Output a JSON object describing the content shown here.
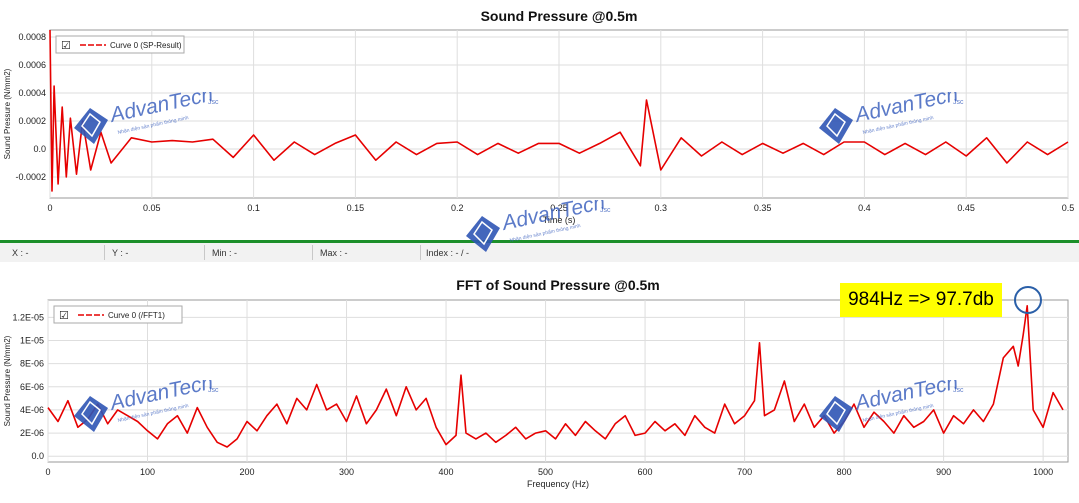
{
  "chart_data": [
    {
      "type": "line",
      "title": "Sound Pressure @0.5m",
      "xlabel": "Time (s)",
      "ylabel": "Sound Pressure (N/mm2)",
      "xlim": [
        0,
        0.5
      ],
      "ylim": [
        -0.00035,
        0.00085
      ],
      "x_ticks": [
        "0",
        "0.05",
        "0.1",
        "0.15",
        "0.2",
        "0.25",
        "0.3",
        "0.35",
        "0.4",
        "0.45",
        "0.5"
      ],
      "x_tick_values": [
        0,
        0.05,
        0.1,
        0.15,
        0.2,
        0.25,
        0.3,
        0.35,
        0.4,
        0.45,
        0.5
      ],
      "y_ticks": [
        "0.0008",
        "0.0006",
        "0.0004",
        "0.0002",
        "0.0",
        "-0.0002"
      ],
      "y_tick_values": [
        0.0008,
        0.0006,
        0.0004,
        0.0002,
        0,
        -0.0002
      ],
      "grid": true,
      "legend": {
        "position": "top-left",
        "checkbox": "☑",
        "entry": "Curve 0 (SP-Result)"
      },
      "series": [
        {
          "name": "Curve 0 (SP-Result)",
          "color": "#e60000",
          "x": [
            0,
            0.001,
            0.002,
            0.004,
            0.006,
            0.008,
            0.01,
            0.013,
            0.016,
            0.02,
            0.025,
            0.03,
            0.04,
            0.05,
            0.06,
            0.07,
            0.08,
            0.09,
            0.1,
            0.11,
            0.12,
            0.13,
            0.14,
            0.15,
            0.16,
            0.17,
            0.18,
            0.19,
            0.2,
            0.21,
            0.22,
            0.23,
            0.24,
            0.25,
            0.26,
            0.27,
            0.28,
            0.29,
            0.293,
            0.3,
            0.31,
            0.32,
            0.33,
            0.34,
            0.35,
            0.36,
            0.37,
            0.38,
            0.39,
            0.4,
            0.41,
            0.42,
            0.43,
            0.44,
            0.45,
            0.46,
            0.47,
            0.48,
            0.49,
            0.5
          ],
          "y": [
            0.00085,
            -0.0003,
            0.00045,
            -0.00025,
            0.0003,
            -0.0002,
            0.00022,
            -0.00018,
            0.0002,
            -0.00015,
            0.00012,
            -0.0001,
            8e-05,
            5e-05,
            6e-05,
            5e-05,
            7e-05,
            -6e-05,
            0.0001,
            -8e-05,
            5e-05,
            -4e-05,
            4e-05,
            0.0001,
            -8e-05,
            5e-05,
            -4e-05,
            4e-05,
            5e-05,
            -4e-05,
            4e-05,
            -3e-05,
            4e-05,
            4e-05,
            -3e-05,
            4e-05,
            0.00012,
            -0.00012,
            0.00035,
            -0.00015,
            8e-05,
            -5e-05,
            5e-05,
            -4e-05,
            4e-05,
            -3e-05,
            4e-05,
            -4e-05,
            5e-05,
            5e-05,
            -4e-05,
            4e-05,
            -4e-05,
            5e-05,
            -5e-05,
            8e-05,
            -0.0001,
            5e-05,
            -4e-05,
            5e-05
          ]
        }
      ]
    },
    {
      "type": "line",
      "title": "FFT of Sound Pressure @0.5m",
      "xlabel": "Frequency (Hz)",
      "ylabel": "Sound Pressure (N/mm2)",
      "xlim": [
        0,
        1025
      ],
      "ylim": [
        -5e-07,
        1.35e-05
      ],
      "x_ticks": [
        "0",
        "100",
        "200",
        "300",
        "400",
        "500",
        "600",
        "700",
        "800",
        "900",
        "1000"
      ],
      "x_tick_values": [
        0,
        100,
        200,
        300,
        400,
        500,
        600,
        700,
        800,
        900,
        1000
      ],
      "y_ticks": [
        "1.2E-05",
        "1E-05",
        "8E-06",
        "6E-06",
        "4E-06",
        "2E-06",
        "0.0"
      ],
      "y_tick_values": [
        1.2e-05,
        1e-05,
        8e-06,
        6e-06,
        4e-06,
        2e-06,
        0
      ],
      "grid": true,
      "legend": {
        "position": "top-left",
        "checkbox": "☑",
        "entry": "Curve 0 (/FFT1)"
      },
      "annotation": "984Hz => 97.7db",
      "series": [
        {
          "name": "Curve 0 (/FFT1)",
          "color": "#e60000",
          "x": [
            0,
            10,
            20,
            30,
            40,
            50,
            60,
            70,
            80,
            90,
            100,
            110,
            120,
            130,
            140,
            150,
            160,
            170,
            180,
            190,
            200,
            210,
            220,
            230,
            240,
            250,
            260,
            270,
            280,
            290,
            300,
            310,
            320,
            330,
            340,
            350,
            360,
            370,
            380,
            390,
            400,
            410,
            415,
            420,
            430,
            440,
            450,
            460,
            470,
            480,
            490,
            500,
            510,
            520,
            530,
            540,
            550,
            560,
            570,
            580,
            590,
            600,
            610,
            620,
            630,
            640,
            650,
            660,
            670,
            680,
            690,
            700,
            710,
            715,
            720,
            730,
            740,
            750,
            760,
            770,
            780,
            790,
            800,
            810,
            820,
            830,
            840,
            850,
            860,
            870,
            880,
            890,
            900,
            910,
            920,
            930,
            940,
            950,
            960,
            970,
            975,
            980,
            984,
            990,
            1000,
            1010,
            1020
          ],
          "y": [
            4.2e-06,
            3e-06,
            4.8e-06,
            2.5e-06,
            3.2e-06,
            4.5e-06,
            2.8e-06,
            4e-06,
            3.5e-06,
            3e-06,
            2.2e-06,
            1.5e-06,
            2.8e-06,
            3.5e-06,
            2e-06,
            4.2e-06,
            2.5e-06,
            1.2e-06,
            8e-07,
            1.5e-06,
            3e-06,
            2.2e-06,
            3.5e-06,
            4.5e-06,
            2.8e-06,
            5e-06,
            4e-06,
            6.2e-06,
            4e-06,
            4.5e-06,
            3e-06,
            5.2e-06,
            2.8e-06,
            4e-06,
            5.8e-06,
            3.5e-06,
            6e-06,
            4e-06,
            5e-06,
            2.5e-06,
            1e-06,
            1.8e-06,
            7e-06,
            2e-06,
            1.5e-06,
            2e-06,
            1.2e-06,
            1.8e-06,
            2.5e-06,
            1.5e-06,
            2e-06,
            2.2e-06,
            1.5e-06,
            2.8e-06,
            1.8e-06,
            3e-06,
            2.2e-06,
            1.5e-06,
            2.8e-06,
            3.5e-06,
            1.8e-06,
            2e-06,
            3e-06,
            2.2e-06,
            2.8e-06,
            1.8e-06,
            3.5e-06,
            2.5e-06,
            2e-06,
            4.5e-06,
            2.8e-06,
            3.5e-06,
            4.8e-06,
            9.8e-06,
            3.5e-06,
            4e-06,
            6.5e-06,
            3e-06,
            4.5e-06,
            2.5e-06,
            3.5e-06,
            2e-06,
            3e-06,
            4.5e-06,
            2.5e-06,
            3.8e-06,
            3e-06,
            2e-06,
            3.5e-06,
            2.5e-06,
            3e-06,
            4e-06,
            2e-06,
            3.5e-06,
            2.8e-06,
            4e-06,
            3e-06,
            4.5e-06,
            8.5e-06,
            9.5e-06,
            7.8e-06,
            1.05e-05,
            1.3e-05,
            4e-06,
            2.5e-06,
            5.5e-06,
            4e-06
          ]
        }
      ]
    }
  ],
  "cursor_bar": {
    "x": "X : -",
    "y": "Y : -",
    "min": "Min : -",
    "max": "Max : -",
    "index": "Index : - / -"
  },
  "watermark": {
    "brand": "AdvanTech",
    "suffix": "Jsc",
    "tagline": "Nhận diện sản phẩm thông minh"
  },
  "colors": {
    "curve": "#e60000",
    "divider": "#1c8f2a",
    "annotation_bg": "#ffff00",
    "marker": "#2a5fa8"
  }
}
